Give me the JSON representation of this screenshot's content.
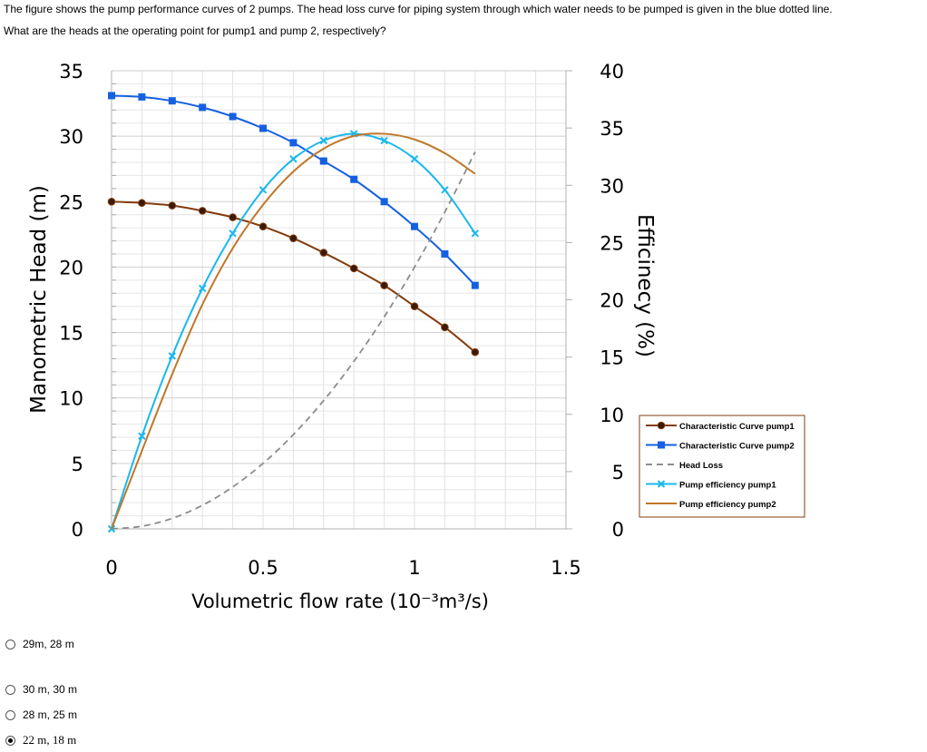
{
  "question": {
    "line1": "The figure shows the pump performance curves of 2 pumps. The head loss curve for piping system through which water needs to be pumped is given in the blue dotted line.",
    "line2": "What are the heads at the operating point for pump1 and pump 2, respectively?"
  },
  "options": [
    {
      "label": "29m, 28 m",
      "selected": false
    },
    {
      "label": "30 m, 30 m",
      "selected": false
    },
    {
      "label": "28 m, 25 m",
      "selected": false
    },
    {
      "label": "22 m, 18 m",
      "selected": true
    }
  ],
  "chart_data": {
    "type": "line",
    "title": "",
    "xlabel": "Volumetric flow rate (10⁻³m³/s)",
    "ylabel": "Manometric Head (m)",
    "y2label": "Efficinecy (%)",
    "xlim": [
      0,
      1.5
    ],
    "ylim": [
      0,
      35
    ],
    "y2lim": [
      0,
      40
    ],
    "xticks": [
      "0",
      "0.5",
      "1",
      "1.5"
    ],
    "yticks": [
      "0",
      "5",
      "10",
      "15",
      "20",
      "25",
      "30",
      "35"
    ],
    "y2ticks": [
      "0",
      "5",
      "10",
      "15",
      "20",
      "25",
      "30",
      "35",
      "40"
    ],
    "grid": true,
    "legend_position": "right",
    "x": [
      0,
      0.1,
      0.2,
      0.3,
      0.4,
      0.5,
      0.6,
      0.7,
      0.8,
      0.9,
      1.0,
      1.1,
      1.2
    ],
    "series": [
      {
        "name": "Characteristic Curve pump1",
        "axis": "left",
        "color": "#843c0c",
        "marker": "circle",
        "dash": false,
        "values": [
          25.0,
          24.9,
          24.7,
          24.3,
          23.8,
          23.1,
          22.2,
          21.1,
          19.9,
          18.6,
          17.0,
          15.4,
          13.5
        ]
      },
      {
        "name": "Characteristic Curve pump2",
        "axis": "left",
        "color": "#1560e0",
        "marker": "square",
        "dash": false,
        "values": [
          33.1,
          33.0,
          32.7,
          32.2,
          31.5,
          30.6,
          29.5,
          28.1,
          26.7,
          25.0,
          23.1,
          21.0,
          18.6
        ]
      },
      {
        "name": "Head Loss",
        "axis": "left",
        "color": "#8c8c8c",
        "marker": "none",
        "dash": true,
        "values": [
          0,
          0.2,
          0.8,
          1.8,
          3.2,
          5.0,
          7.2,
          9.8,
          12.8,
          16.2,
          20.0,
          24.2,
          28.8
        ]
      },
      {
        "name": "Pump efficiency pump1",
        "axis": "right",
        "color": "#1ab8ee",
        "marker": "x",
        "dash": false,
        "values": [
          0,
          8.1,
          15.1,
          21.0,
          25.8,
          29.6,
          32.3,
          33.9,
          34.5,
          33.9,
          32.3,
          29.6,
          25.8
        ]
      },
      {
        "name": "Pump efficiency pump2",
        "axis": "right",
        "color": "#c0772a",
        "marker": "none",
        "dash": false,
        "values": [
          0,
          6.8,
          13.5,
          19.6,
          24.5,
          28.3,
          31.2,
          33.2,
          34.3,
          34.5,
          34.0,
          32.8,
          31.0
        ]
      }
    ]
  }
}
